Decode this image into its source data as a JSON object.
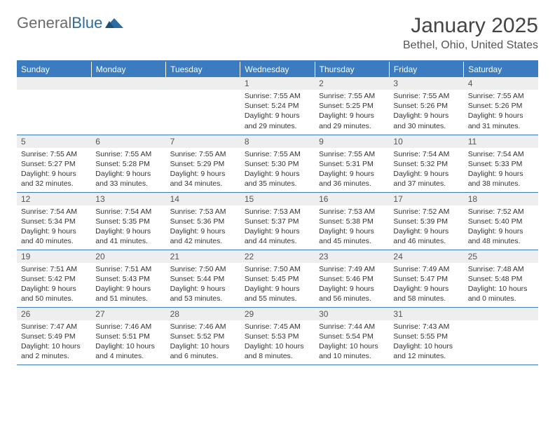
{
  "brand": {
    "part1": "General",
    "part2": "Blue"
  },
  "title": "January 2025",
  "location": "Bethel, Ohio, United States",
  "colors": {
    "header_bg": "#3b7bbf",
    "header_text": "#ffffff",
    "daynum_bg": "#eeeeee",
    "border": "#3b7bbf",
    "text": "#333333"
  },
  "days_of_week": [
    "Sunday",
    "Monday",
    "Tuesday",
    "Wednesday",
    "Thursday",
    "Friday",
    "Saturday"
  ],
  "weeks": [
    [
      null,
      null,
      null,
      {
        "n": "1",
        "sr": "Sunrise: 7:55 AM",
        "ss": "Sunset: 5:24 PM",
        "dl1": "Daylight: 9 hours",
        "dl2": "and 29 minutes."
      },
      {
        "n": "2",
        "sr": "Sunrise: 7:55 AM",
        "ss": "Sunset: 5:25 PM",
        "dl1": "Daylight: 9 hours",
        "dl2": "and 29 minutes."
      },
      {
        "n": "3",
        "sr": "Sunrise: 7:55 AM",
        "ss": "Sunset: 5:26 PM",
        "dl1": "Daylight: 9 hours",
        "dl2": "and 30 minutes."
      },
      {
        "n": "4",
        "sr": "Sunrise: 7:55 AM",
        "ss": "Sunset: 5:26 PM",
        "dl1": "Daylight: 9 hours",
        "dl2": "and 31 minutes."
      }
    ],
    [
      {
        "n": "5",
        "sr": "Sunrise: 7:55 AM",
        "ss": "Sunset: 5:27 PM",
        "dl1": "Daylight: 9 hours",
        "dl2": "and 32 minutes."
      },
      {
        "n": "6",
        "sr": "Sunrise: 7:55 AM",
        "ss": "Sunset: 5:28 PM",
        "dl1": "Daylight: 9 hours",
        "dl2": "and 33 minutes."
      },
      {
        "n": "7",
        "sr": "Sunrise: 7:55 AM",
        "ss": "Sunset: 5:29 PM",
        "dl1": "Daylight: 9 hours",
        "dl2": "and 34 minutes."
      },
      {
        "n": "8",
        "sr": "Sunrise: 7:55 AM",
        "ss": "Sunset: 5:30 PM",
        "dl1": "Daylight: 9 hours",
        "dl2": "and 35 minutes."
      },
      {
        "n": "9",
        "sr": "Sunrise: 7:55 AM",
        "ss": "Sunset: 5:31 PM",
        "dl1": "Daylight: 9 hours",
        "dl2": "and 36 minutes."
      },
      {
        "n": "10",
        "sr": "Sunrise: 7:54 AM",
        "ss": "Sunset: 5:32 PM",
        "dl1": "Daylight: 9 hours",
        "dl2": "and 37 minutes."
      },
      {
        "n": "11",
        "sr": "Sunrise: 7:54 AM",
        "ss": "Sunset: 5:33 PM",
        "dl1": "Daylight: 9 hours",
        "dl2": "and 38 minutes."
      }
    ],
    [
      {
        "n": "12",
        "sr": "Sunrise: 7:54 AM",
        "ss": "Sunset: 5:34 PM",
        "dl1": "Daylight: 9 hours",
        "dl2": "and 40 minutes."
      },
      {
        "n": "13",
        "sr": "Sunrise: 7:54 AM",
        "ss": "Sunset: 5:35 PM",
        "dl1": "Daylight: 9 hours",
        "dl2": "and 41 minutes."
      },
      {
        "n": "14",
        "sr": "Sunrise: 7:53 AM",
        "ss": "Sunset: 5:36 PM",
        "dl1": "Daylight: 9 hours",
        "dl2": "and 42 minutes."
      },
      {
        "n": "15",
        "sr": "Sunrise: 7:53 AM",
        "ss": "Sunset: 5:37 PM",
        "dl1": "Daylight: 9 hours",
        "dl2": "and 44 minutes."
      },
      {
        "n": "16",
        "sr": "Sunrise: 7:53 AM",
        "ss": "Sunset: 5:38 PM",
        "dl1": "Daylight: 9 hours",
        "dl2": "and 45 minutes."
      },
      {
        "n": "17",
        "sr": "Sunrise: 7:52 AM",
        "ss": "Sunset: 5:39 PM",
        "dl1": "Daylight: 9 hours",
        "dl2": "and 46 minutes."
      },
      {
        "n": "18",
        "sr": "Sunrise: 7:52 AM",
        "ss": "Sunset: 5:40 PM",
        "dl1": "Daylight: 9 hours",
        "dl2": "and 48 minutes."
      }
    ],
    [
      {
        "n": "19",
        "sr": "Sunrise: 7:51 AM",
        "ss": "Sunset: 5:42 PM",
        "dl1": "Daylight: 9 hours",
        "dl2": "and 50 minutes."
      },
      {
        "n": "20",
        "sr": "Sunrise: 7:51 AM",
        "ss": "Sunset: 5:43 PM",
        "dl1": "Daylight: 9 hours",
        "dl2": "and 51 minutes."
      },
      {
        "n": "21",
        "sr": "Sunrise: 7:50 AM",
        "ss": "Sunset: 5:44 PM",
        "dl1": "Daylight: 9 hours",
        "dl2": "and 53 minutes."
      },
      {
        "n": "22",
        "sr": "Sunrise: 7:50 AM",
        "ss": "Sunset: 5:45 PM",
        "dl1": "Daylight: 9 hours",
        "dl2": "and 55 minutes."
      },
      {
        "n": "23",
        "sr": "Sunrise: 7:49 AM",
        "ss": "Sunset: 5:46 PM",
        "dl1": "Daylight: 9 hours",
        "dl2": "and 56 minutes."
      },
      {
        "n": "24",
        "sr": "Sunrise: 7:49 AM",
        "ss": "Sunset: 5:47 PM",
        "dl1": "Daylight: 9 hours",
        "dl2": "and 58 minutes."
      },
      {
        "n": "25",
        "sr": "Sunrise: 7:48 AM",
        "ss": "Sunset: 5:48 PM",
        "dl1": "Daylight: 10 hours",
        "dl2": "and 0 minutes."
      }
    ],
    [
      {
        "n": "26",
        "sr": "Sunrise: 7:47 AM",
        "ss": "Sunset: 5:49 PM",
        "dl1": "Daylight: 10 hours",
        "dl2": "and 2 minutes."
      },
      {
        "n": "27",
        "sr": "Sunrise: 7:46 AM",
        "ss": "Sunset: 5:51 PM",
        "dl1": "Daylight: 10 hours",
        "dl2": "and 4 minutes."
      },
      {
        "n": "28",
        "sr": "Sunrise: 7:46 AM",
        "ss": "Sunset: 5:52 PM",
        "dl1": "Daylight: 10 hours",
        "dl2": "and 6 minutes."
      },
      {
        "n": "29",
        "sr": "Sunrise: 7:45 AM",
        "ss": "Sunset: 5:53 PM",
        "dl1": "Daylight: 10 hours",
        "dl2": "and 8 minutes."
      },
      {
        "n": "30",
        "sr": "Sunrise: 7:44 AM",
        "ss": "Sunset: 5:54 PM",
        "dl1": "Daylight: 10 hours",
        "dl2": "and 10 minutes."
      },
      {
        "n": "31",
        "sr": "Sunrise: 7:43 AM",
        "ss": "Sunset: 5:55 PM",
        "dl1": "Daylight: 10 hours",
        "dl2": "and 12 minutes."
      },
      null
    ]
  ]
}
